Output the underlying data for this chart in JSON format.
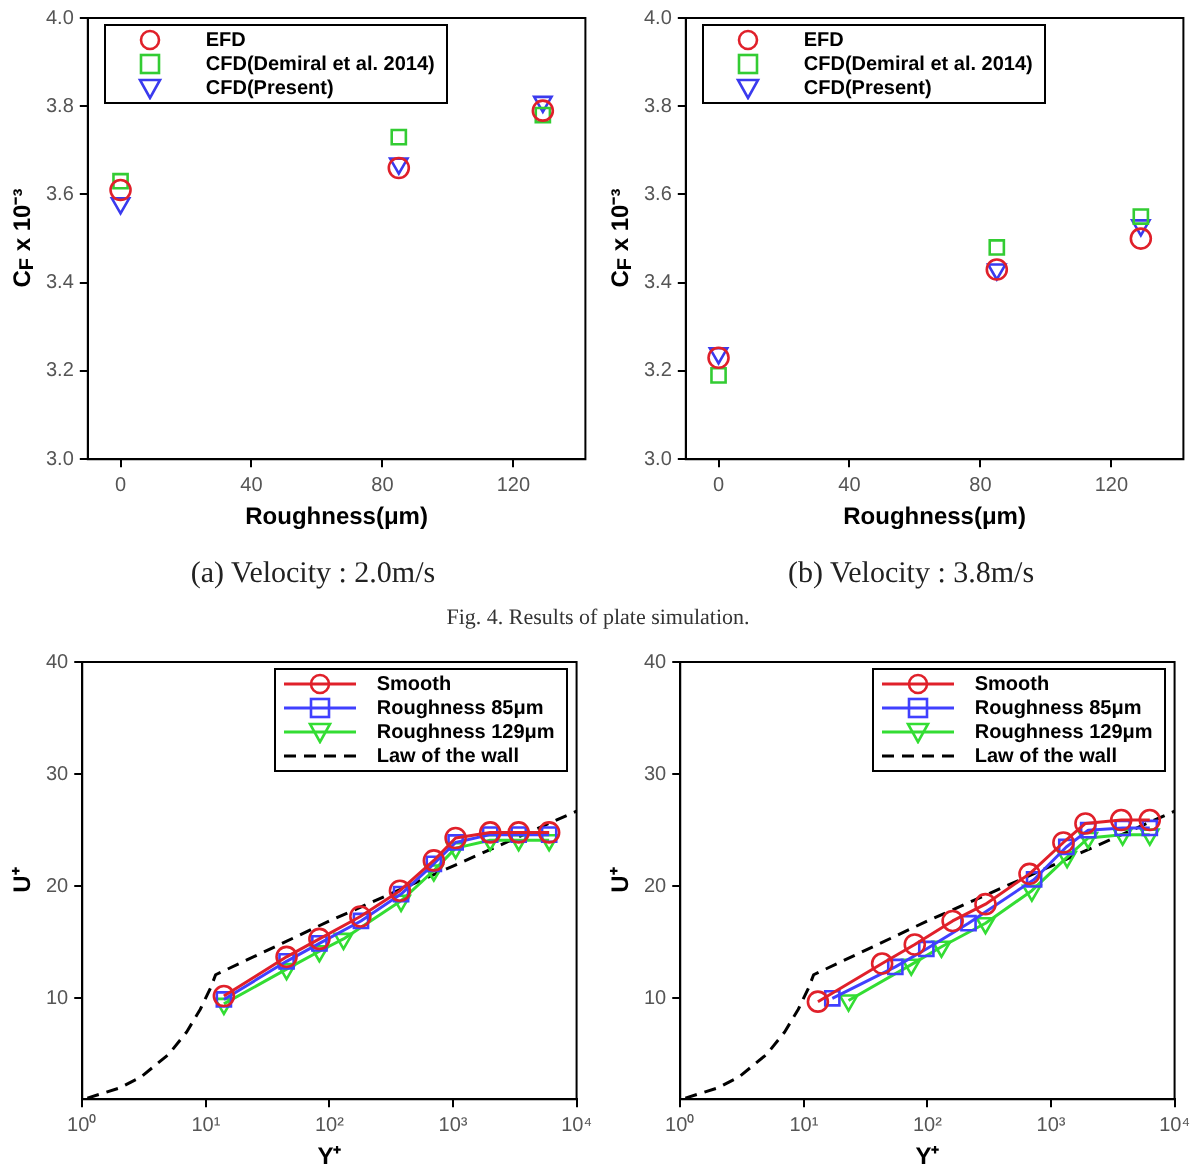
{
  "chart_data": [
    {
      "type": "scatter",
      "title": "(a) Velocity : 2.0m/s",
      "xlabel": "Roughness(μm)",
      "ylabel": "C$_{F}$ x 10⁻³",
      "legend": "top left",
      "annotations": [
        "Fig. 4. Results of plate simulation."
      ],
      "x": [
        0,
        85,
        129
      ],
      "xlim": [
        -10,
        142
      ],
      "xticks": [
        0,
        40,
        80,
        120
      ],
      "ylim": [
        3,
        4
      ],
      "yticks": [
        {
          "value": 3,
          "label": "3.0"
        },
        {
          "value": 3.2,
          "label": "3.2"
        },
        {
          "value": 3.4,
          "label": "3.4"
        },
        {
          "value": 3.6,
          "label": "3.6"
        },
        {
          "value": 3.8,
          "label": "3.8"
        },
        {
          "value": 4,
          "label": "4.0"
        }
      ],
      "series": [
        {
          "name": "EFD",
          "color": "#e0202a",
          "marker": "circle",
          "values": [
            3.61,
            3.66,
            3.79
          ]
        },
        {
          "name": "CFD(Demiral et al. 2014)",
          "color": "#33cc33",
          "marker": "square",
          "values": [
            3.63,
            3.73,
            3.78
          ]
        },
        {
          "name": "CFD(Present)",
          "color": "#3a3aee",
          "marker": "triangle",
          "values": [
            3.58,
            3.67,
            3.81
          ]
        }
      ]
    },
    {
      "type": "scatter",
      "title": "(b) Velocity : 3.8m/s",
      "xlabel": "Roughness(μm)",
      "ylabel": "C$_{F}$ x 10⁻³",
      "legend": "top left",
      "x": [
        0,
        85,
        129
      ],
      "xlim": [
        -10,
        142
      ],
      "xticks": [
        0,
        40,
        80,
        120
      ],
      "ylim": [
        3,
        4
      ],
      "yticks": [
        {
          "value": 3,
          "label": "3.0"
        },
        {
          "value": 3.2,
          "label": "3.2"
        },
        {
          "value": 3.4,
          "label": "3.4"
        },
        {
          "value": 3.6,
          "label": "3.6"
        },
        {
          "value": 3.8,
          "label": "3.8"
        },
        {
          "value": 4,
          "label": "4.0"
        }
      ],
      "series": [
        {
          "name": "EFD",
          "color": "#e0202a",
          "marker": "circle",
          "values": [
            3.23,
            3.43,
            3.5
          ]
        },
        {
          "name": "CFD(Demiral et al. 2014)",
          "color": "#33cc33",
          "marker": "square",
          "values": [
            3.19,
            3.48,
            3.55
          ]
        },
        {
          "name": "CFD(Present)",
          "color": "#3a3aee",
          "marker": "triangle",
          "values": [
            3.24,
            3.43,
            3.53
          ]
        }
      ]
    },
    {
      "type": "line",
      "xlabel": "Y⁺",
      "ylabel": "U⁺",
      "legend": "top right",
      "log": "x",
      "xlim": [
        1,
        10000
      ],
      "xticks": [
        {
          "value": 1,
          "label": "10⁰"
        },
        {
          "value": 10,
          "label": "10¹"
        },
        {
          "value": 100,
          "label": "10²"
        },
        {
          "value": 1000,
          "label": "10³"
        },
        {
          "value": 10000,
          "label": "10⁴"
        }
      ],
      "ylim": [
        1,
        40
      ],
      "yticks": [
        10,
        20,
        30,
        40
      ],
      "series": [
        {
          "name": "Smooth",
          "color": "#e0202a",
          "marker": "circle",
          "x": [
            14,
            45,
            83,
            178,
            372,
            700,
            1050,
            2000,
            3400,
            6000
          ],
          "values": [
            10.2,
            13.7,
            15.3,
            17.3,
            19.6,
            22.3,
            24.3,
            24.8,
            24.8,
            24.8
          ]
        },
        {
          "name": "Roughness 85μm",
          "color": "#4040ff",
          "marker": "square",
          "x": [
            14,
            45,
            83,
            180,
            380,
            700,
            1050,
            2000,
            3400,
            6000
          ],
          "values": [
            9.9,
            13.3,
            14.9,
            16.9,
            19.3,
            22,
            23.9,
            24.6,
            24.6,
            24.6
          ]
        },
        {
          "name": "Roughness 129μm",
          "color": "#33dd33",
          "marker": "triangle",
          "x": [
            14,
            45,
            83,
            130,
            380,
            700,
            1050,
            2000,
            3400,
            6000
          ],
          "values": [
            9.5,
            12.6,
            14.2,
            15.3,
            18.7,
            21.4,
            23.4,
            24.1,
            24.1,
            24.1
          ]
        },
        {
          "name": "Law of the wall",
          "color": "#000000",
          "marker": "none",
          "line_style": "dashed",
          "x": [
            1.1,
            2,
            3,
            5,
            7,
            9,
            11,
            12,
            100,
            1000,
            10000
          ],
          "values": [
            1.1,
            2,
            3,
            5,
            7,
            9,
            11,
            12.1,
            16.9,
            21.8,
            26.7
          ]
        }
      ]
    },
    {
      "type": "line",
      "xlabel": "Y⁺",
      "ylabel": "U⁺",
      "legend": "top right",
      "log": "x",
      "xlim": [
        1,
        10000
      ],
      "xticks": [
        {
          "value": 1,
          "label": "10⁰"
        },
        {
          "value": 10,
          "label": "10¹"
        },
        {
          "value": 100,
          "label": "10²"
        },
        {
          "value": 1000,
          "label": "10³"
        },
        {
          "value": 10000,
          "label": "10⁴"
        }
      ],
      "ylim": [
        1,
        40
      ],
      "yticks": [
        10,
        20,
        30,
        40
      ],
      "series": [
        {
          "name": "Smooth",
          "color": "#e0202a",
          "marker": "circle",
          "x": [
            13,
            43,
            79,
            160,
            295,
            670,
            1260,
            1900,
            3700,
            6300
          ],
          "values": [
            9.7,
            13.1,
            14.8,
            16.9,
            18.4,
            21.1,
            23.9,
            25.6,
            25.9,
            25.9
          ]
        },
        {
          "name": "Roughness 85μm",
          "color": "#4040ff",
          "marker": "square",
          "x": [
            17,
            55,
            98,
            215,
            730,
            1330,
            2000,
            3800,
            6300
          ],
          "values": [
            10,
            12.8,
            14.4,
            16.7,
            20.6,
            23.5,
            25,
            25.2,
            25.2
          ]
        },
        {
          "name": "Roughness 129μm",
          "color": "#33dd33",
          "marker": "triangle",
          "x": [
            23,
            74,
            130,
            295,
            700,
            1350,
            2000,
            3800,
            6300
          ],
          "values": [
            9.8,
            13,
            14.6,
            16.7,
            19.6,
            22.6,
            24.3,
            24.6,
            24.6
          ]
        },
        {
          "name": "Law of the wall",
          "color": "#000000",
          "marker": "none",
          "line_style": "dashed",
          "x": [
            1.1,
            2,
            3,
            5,
            7,
            9,
            11,
            12,
            100,
            1000,
            10000
          ],
          "values": [
            1.1,
            2,
            3,
            5,
            7,
            9,
            11,
            12.1,
            16.9,
            21.8,
            26.7
          ]
        }
      ]
    }
  ]
}
